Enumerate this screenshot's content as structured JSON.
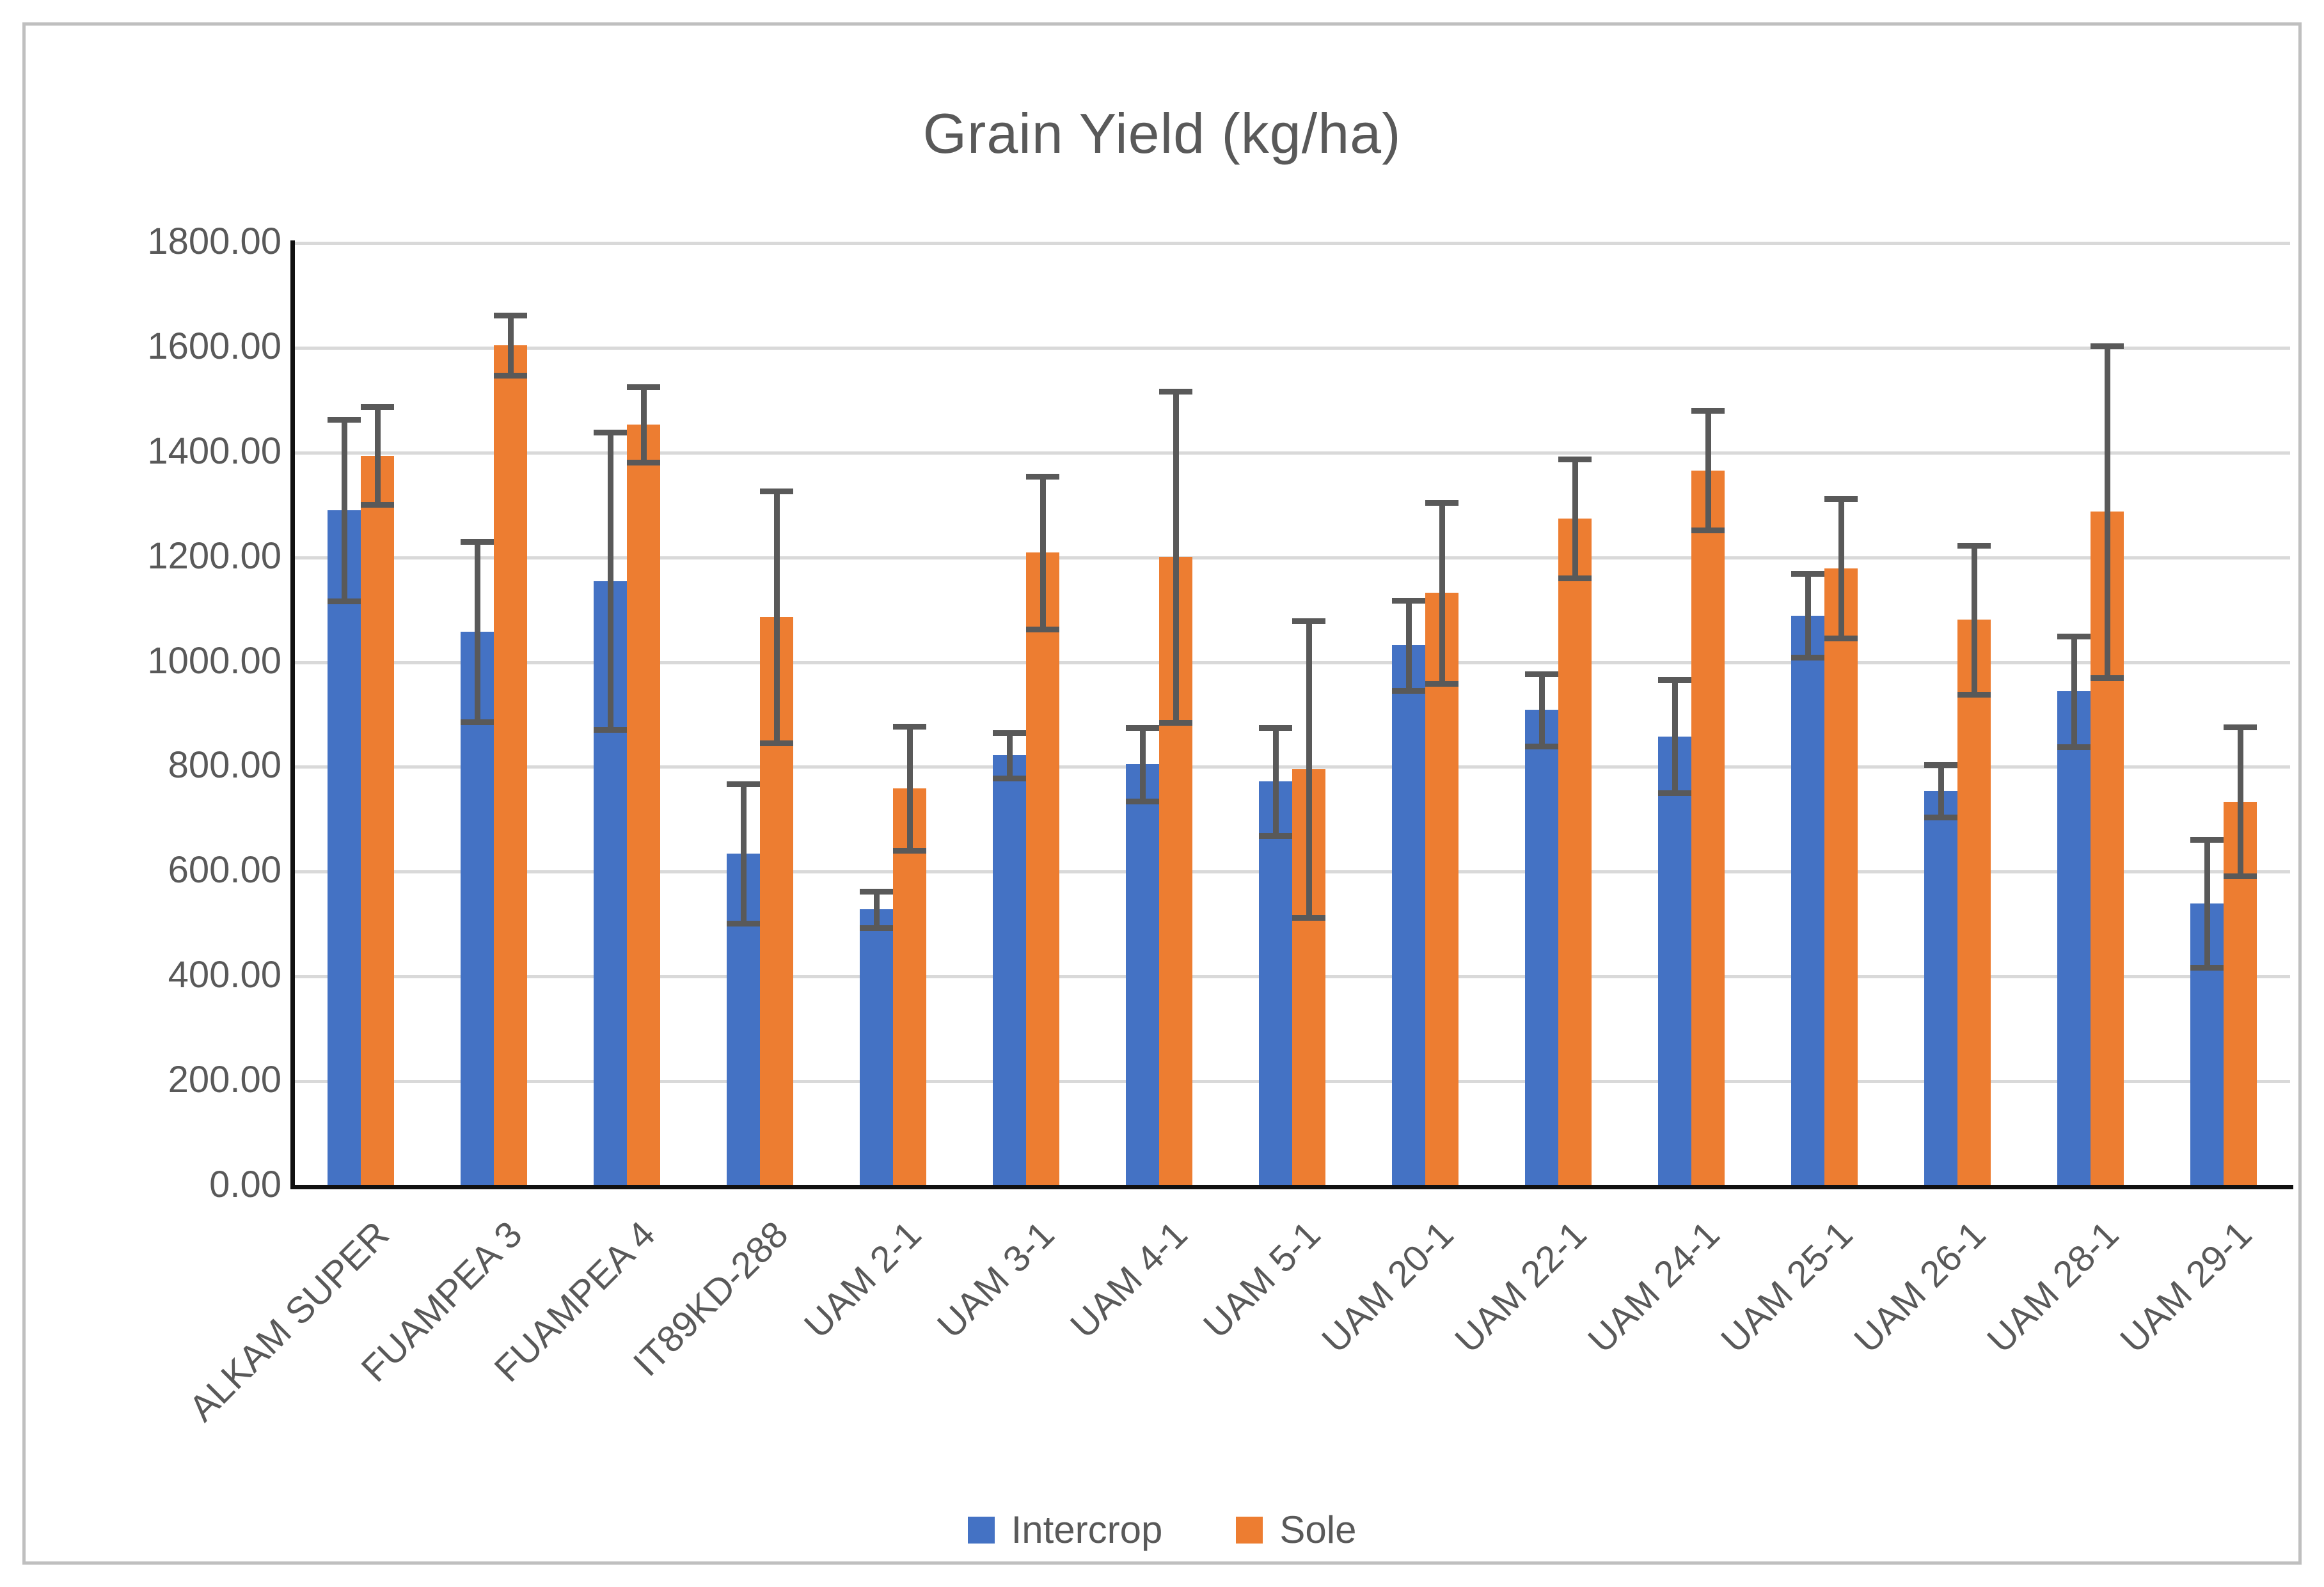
{
  "chart_data": {
    "type": "bar",
    "title": "Grain Yield (kg/ha)",
    "categories": [
      "ALKAM SUPER",
      "FUAMPEA 3",
      "FUAMPEA 4",
      "IT89KD-288",
      "UAM 2-1",
      "UAM 3-1",
      "UAM 4-1",
      "UAM 5-1",
      "UAM 20-1",
      "UAM 22-1",
      "UAM 24-1",
      "UAM 25-1",
      "UAM 26-1",
      "UAM 28-1",
      "UAM 29-1"
    ],
    "series": [
      {
        "name": "Intercrop",
        "color": "#4472C4",
        "values": [
          1290,
          1058,
          1155,
          635,
          528,
          822,
          805,
          772,
          1032,
          909,
          858,
          1089,
          754,
          944,
          539
        ],
        "errors": [
          173,
          172,
          284,
          133,
          35,
          43,
          70,
          103,
          86,
          69,
          108,
          80,
          50,
          106,
          122
        ]
      },
      {
        "name": "Sole",
        "color": "#ED7D31",
        "values": [
          1394,
          1605,
          1453,
          1086,
          759,
          1209,
          1201,
          796,
          1132,
          1274,
          1366,
          1179,
          1081,
          1287,
          734
        ],
        "errors": [
          93,
          57,
          72,
          240,
          118,
          146,
          316,
          283,
          173,
          113,
          114,
          133,
          142,
          317,
          142
        ]
      }
    ],
    "ylim": [
      0,
      1800
    ],
    "y_tick_labels": [
      "1800.00",
      "1600.00",
      "1400.00",
      "1200.00",
      "1000.00",
      "800.00",
      "600.00",
      "400.00",
      "200.00",
      "0.00"
    ],
    "xlabel": "",
    "ylabel": "",
    "grid": "horizontal",
    "legend_position": "bottom",
    "error_bar_color": "#595959"
  },
  "colors": {
    "text": "#595959",
    "gridline": "#D9D9D9",
    "axis": "#111111",
    "frame_border": "#BFBFBF",
    "background": "#FFFFFF"
  }
}
